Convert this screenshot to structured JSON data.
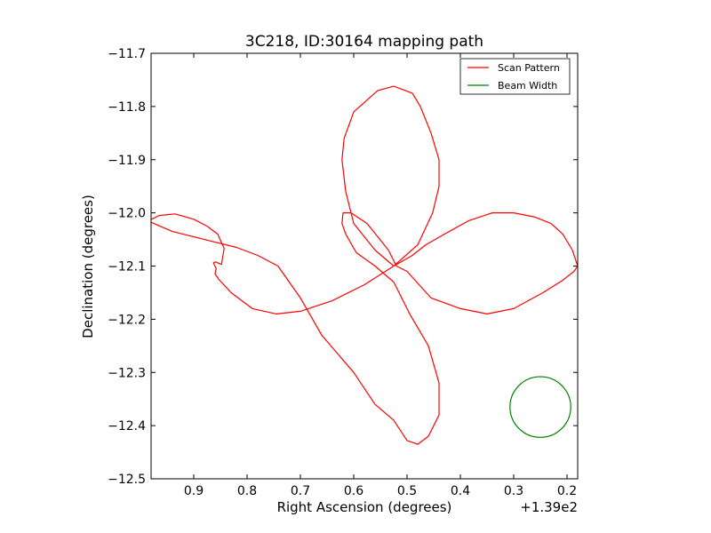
{
  "chart_data": {
    "type": "line",
    "title": "3C218, ID:30164 mapping path",
    "xlabel": "Right Ascension (degrees)",
    "ylabel": "Declination (degrees)",
    "x_offset_label": "+1.39e2",
    "xlim": [
      139.98,
      139.18
    ],
    "ylim": [
      -12.5,
      -11.7
    ],
    "x_inverted": true,
    "xticks": [
      139.9,
      139.8,
      139.7,
      139.6,
      139.5,
      139.4,
      139.3,
      139.2
    ],
    "xtick_labels": [
      "0.9",
      "0.8",
      "0.7",
      "0.6",
      "0.5",
      "0.4",
      "0.3",
      "0.2"
    ],
    "yticks": [
      -11.7,
      -11.8,
      -11.9,
      -12.0,
      -12.1,
      -12.2,
      -12.3,
      -12.4,
      -12.5
    ],
    "ytick_labels": [
      "−11.7",
      "−11.8",
      "−11.9",
      "−12.0",
      "−12.1",
      "−12.2",
      "−12.3",
      "−12.4",
      "−12.5"
    ],
    "grid": false,
    "legend_position": "top-right",
    "series": [
      {
        "name": "Scan Pattern",
        "color": "#ff0000",
        "x": [
          139.525,
          139.56,
          139.6,
          139.615,
          139.622,
          139.618,
          139.6,
          139.555,
          139.525,
          139.49,
          139.475,
          139.455,
          139.44,
          139.44,
          139.452,
          139.48,
          139.525,
          139.58,
          139.64,
          139.7,
          139.745,
          139.79,
          139.83,
          139.853,
          139.86,
          139.858,
          139.863,
          139.86,
          139.848,
          139.843,
          139.855,
          139.875,
          139.9,
          139.935,
          139.965,
          139.985,
          139.975,
          139.94,
          139.9,
          139.86,
          139.82,
          139.78,
          139.742,
          139.7,
          139.66,
          139.6,
          139.56,
          139.525,
          139.5,
          139.48,
          139.46,
          139.44,
          139.44,
          139.46,
          139.495,
          139.525,
          139.56,
          139.595,
          139.615,
          139.622,
          139.62,
          139.605,
          139.575,
          139.535,
          139.52,
          139.5,
          139.455,
          139.4,
          139.35,
          139.3,
          139.245,
          139.21,
          139.187,
          139.18,
          139.19,
          139.208,
          139.23,
          139.26,
          139.3,
          139.34,
          139.385,
          139.43,
          139.465,
          139.49,
          139.525
        ],
        "y": [
          -12.1,
          -12.07,
          -12.02,
          -11.96,
          -11.9,
          -11.86,
          -11.81,
          -11.77,
          -11.762,
          -11.775,
          -11.8,
          -11.85,
          -11.9,
          -11.95,
          -12.0,
          -12.06,
          -12.1,
          -12.135,
          -12.165,
          -12.185,
          -12.19,
          -12.18,
          -12.15,
          -12.125,
          -12.115,
          -12.105,
          -12.094,
          -12.092,
          -12.097,
          -12.067,
          -12.04,
          -12.025,
          -12.012,
          -12.002,
          -12.005,
          -12.015,
          -12.02,
          -12.035,
          -12.045,
          -12.055,
          -12.065,
          -12.08,
          -12.1,
          -12.16,
          -12.23,
          -12.3,
          -12.36,
          -12.39,
          -12.428,
          -12.435,
          -12.42,
          -12.38,
          -12.32,
          -12.25,
          -12.19,
          -12.13,
          -12.1,
          -12.075,
          -12.04,
          -12.02,
          -12.0,
          -12.0,
          -12.02,
          -12.07,
          -12.1,
          -12.11,
          -12.16,
          -12.18,
          -12.19,
          -12.18,
          -12.15,
          -12.128,
          -12.11,
          -12.1,
          -12.07,
          -12.04,
          -12.02,
          -12.008,
          -12.0,
          -12.0,
          -12.015,
          -12.04,
          -12.06,
          -12.08,
          -12.1
        ]
      },
      {
        "name": "Beam Width",
        "color": "#008000",
        "shape": "circle",
        "center": [
          139.25,
          -12.365
        ],
        "radius_deg": 0.057
      }
    ]
  }
}
